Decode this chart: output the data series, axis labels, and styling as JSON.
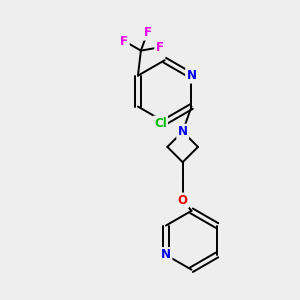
{
  "background_color": "#eeeeee",
  "bond_color": "#000000",
  "atom_colors": {
    "N": "#0000ee",
    "Cl": "#00bb00",
    "F": "#ee00ee",
    "O": "#ee0000",
    "C": "#000000"
  },
  "font_size": 8.5,
  "fig_size": [
    3.0,
    3.0
  ],
  "dpi": 100
}
